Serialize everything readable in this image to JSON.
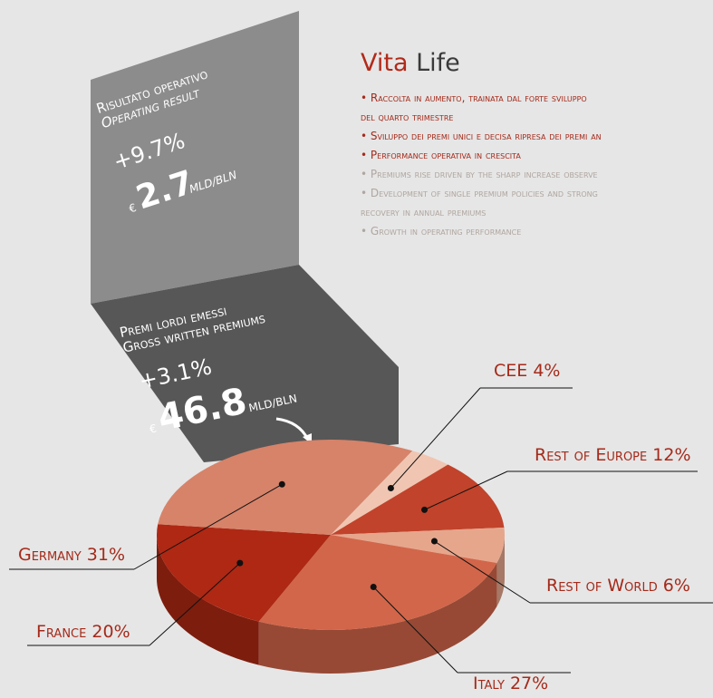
{
  "header": {
    "title_red": "Vita",
    "title_dark": "Life"
  },
  "bullets": [
    {
      "lines": [
        "Raccolta in aumento, trainata dal forte sviluppo",
        "del quarto trimestre"
      ]
    },
    {
      "lines": [
        "Sviluppo dei premi unici e decisa ripresa dei premi an"
      ]
    },
    {
      "lines": [
        "Performance operativa in crescita"
      ]
    },
    {
      "lines": [
        "Premiums rise driven by the sharp increase observe"
      ]
    },
    {
      "lines": [
        "Development of single premium policies and strong",
        "recovery in annual premiums"
      ]
    },
    {
      "lines": [
        "Growth in operating performance"
      ]
    }
  ],
  "panels": [
    {
      "label_it": "Risultato operativo",
      "label_en": "Operating result",
      "change": "+9.7%",
      "currency": "€",
      "amount": "2.7",
      "unit": "MLD/BLN"
    },
    {
      "label_it": "Premi lordi emessi",
      "label_en": "Gross written premiums",
      "change": "+3.1%",
      "currency": "€",
      "amount": "46.8",
      "unit": "MLD/BLN"
    }
  ],
  "chart_data": {
    "type": "pie",
    "categories": [
      "CEE",
      "Rest of Europe",
      "Rest of World",
      "Italy",
      "France",
      "Germany"
    ],
    "values": [
      4,
      12,
      6,
      27,
      20,
      31
    ],
    "value_labels": [
      "4%",
      "12%",
      "6%",
      "27%",
      "20%",
      "31%"
    ],
    "colors": [
      "#f0c6b2",
      "#c1432b",
      "#e6a68c",
      "#d2664a",
      "#ae2814",
      "#d6836a"
    ]
  }
}
